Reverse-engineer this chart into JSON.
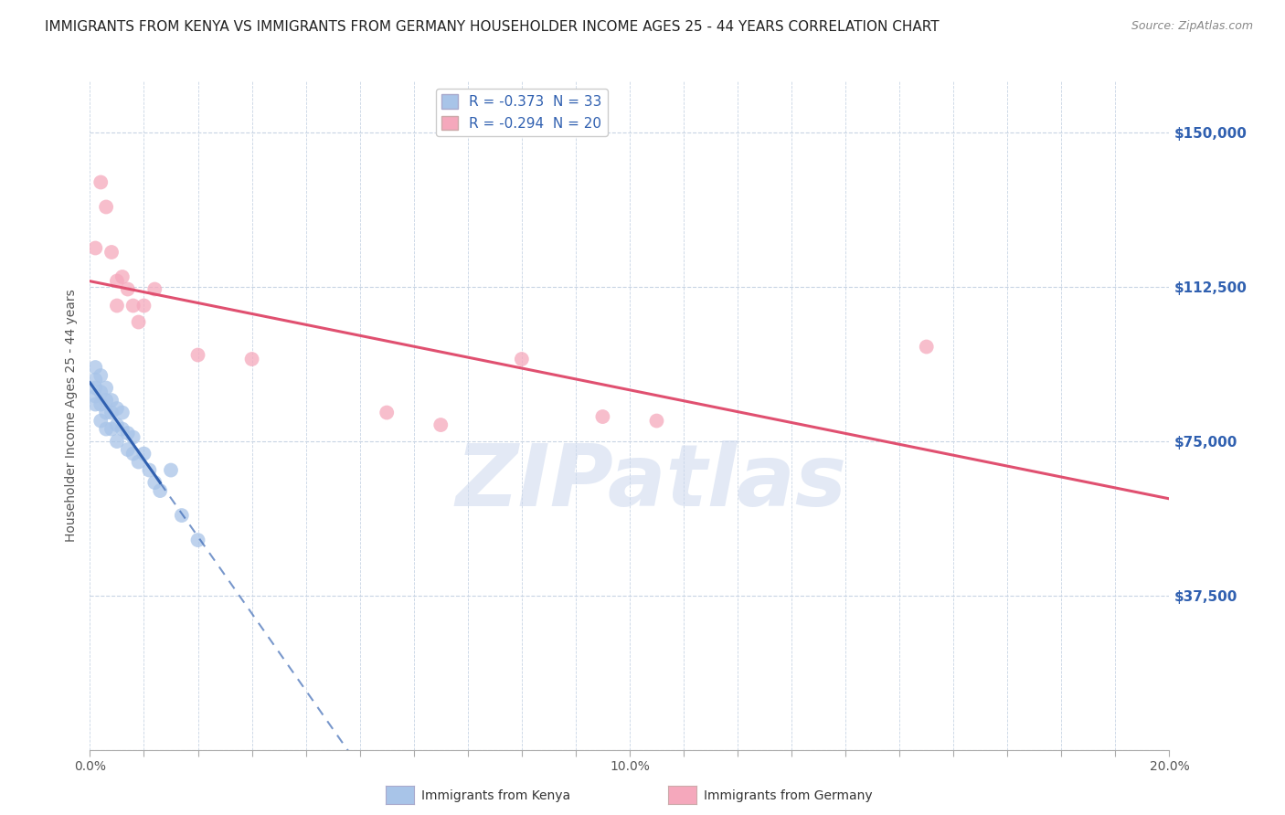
{
  "title": "IMMIGRANTS FROM KENYA VS IMMIGRANTS FROM GERMANY HOUSEHOLDER INCOME AGES 25 - 44 YEARS CORRELATION CHART",
  "source": "Source: ZipAtlas.com",
  "ylabel": "Householder Income Ages 25 - 44 years",
  "xlim": [
    0.0,
    0.2
  ],
  "ylim": [
    0,
    162500
  ],
  "yticks": [
    0,
    37500,
    75000,
    112500,
    150000
  ],
  "ytick_labels_right": [
    "",
    "$37,500",
    "$75,000",
    "$112,500",
    "$150,000"
  ],
  "kenya_R": -0.373,
  "kenya_N": 33,
  "germany_R": -0.294,
  "germany_N": 20,
  "kenya_color": "#a8c4e8",
  "germany_color": "#f5a8bc",
  "kenya_line_color": "#3060b0",
  "germany_line_color": "#e05070",
  "kenya_x": [
    0.001,
    0.001,
    0.001,
    0.001,
    0.001,
    0.002,
    0.002,
    0.002,
    0.002,
    0.003,
    0.003,
    0.003,
    0.003,
    0.004,
    0.004,
    0.004,
    0.005,
    0.005,
    0.005,
    0.006,
    0.006,
    0.007,
    0.007,
    0.008,
    0.008,
    0.009,
    0.01,
    0.011,
    0.012,
    0.013,
    0.015,
    0.017,
    0.02
  ],
  "kenya_y": [
    93000,
    90000,
    88000,
    86000,
    84000,
    91000,
    87000,
    84000,
    80000,
    88000,
    85000,
    82000,
    78000,
    85000,
    82000,
    78000,
    83000,
    79000,
    75000,
    82000,
    78000,
    77000,
    73000,
    76000,
    72000,
    70000,
    72000,
    68000,
    65000,
    63000,
    68000,
    57000,
    51000
  ],
  "germany_x": [
    0.001,
    0.002,
    0.003,
    0.004,
    0.005,
    0.005,
    0.006,
    0.007,
    0.008,
    0.009,
    0.01,
    0.012,
    0.02,
    0.03,
    0.055,
    0.065,
    0.08,
    0.095,
    0.105,
    0.155
  ],
  "germany_y": [
    122000,
    138000,
    132000,
    121000,
    114000,
    108000,
    115000,
    112000,
    108000,
    104000,
    108000,
    112000,
    96000,
    95000,
    82000,
    79000,
    95000,
    81000,
    80000,
    98000
  ],
  "kenya_line_x0": 0.0,
  "kenya_line_x_solid_end": 0.013,
  "kenya_line_x_dash_end": 0.2,
  "germany_line_x0": 0.0,
  "germany_line_x_end": 0.2,
  "watermark_text": "ZIPatlas",
  "watermark_color": "#ccd8ee",
  "watermark_alpha": 0.55,
  "background_color": "#ffffff",
  "grid_color": "#c8d4e4",
  "title_fontsize": 11,
  "axis_label_fontsize": 10,
  "tick_fontsize": 10,
  "legend_fontsize": 11,
  "source_fontsize": 9
}
